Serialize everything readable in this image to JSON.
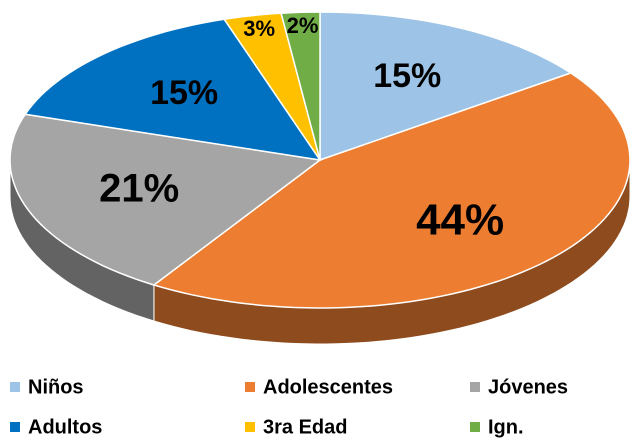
{
  "chart_data": {
    "type": "pie",
    "categories": [
      "Niños",
      "Adolescentes",
      "Jóvenes",
      "Adultos",
      "3ra Edad",
      "Ign."
    ],
    "values": [
      15,
      44,
      21,
      15,
      3,
      2
    ],
    "value_labels": [
      "15%",
      "44%",
      "21%",
      "15%",
      "3%",
      "2%"
    ],
    "colors": [
      "#9dc3e6",
      "#ed7d31",
      "#a5a5a5",
      "#0070c0",
      "#ffc000",
      "#70ad47"
    ],
    "legend": "bottom"
  }
}
